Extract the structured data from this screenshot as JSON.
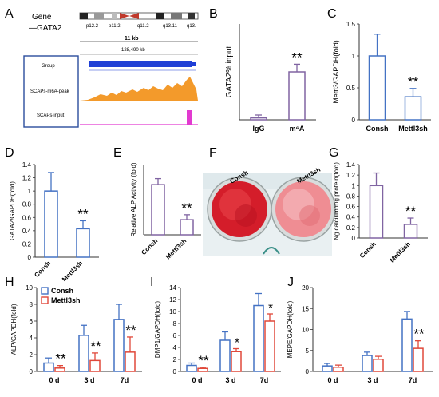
{
  "colors": {
    "blue": "#4472c4",
    "purple": "#8064a2",
    "red": "#e0483a",
    "track": "#f39a2b",
    "input": "#e23ad0",
    "gene": "#1f3fd6"
  },
  "panel_letters": [
    "A",
    "B",
    "C",
    "D",
    "E",
    "F",
    "G",
    "H",
    "I",
    "J"
  ],
  "panel_a": {
    "gene_label": "Gene",
    "gene_name": "—GATA2",
    "bands": [
      "p12.2",
      "p11.2",
      "q11.2",
      "q13.11",
      "q13."
    ],
    "scale": "11 kb",
    "coord": "128,490 kb",
    "tracks": [
      "Group",
      "SCAPs-m6A-peak",
      "SCAPs-input"
    ]
  },
  "panel_f": {
    "labels": [
      "Consh",
      "Mettl3sh"
    ]
  },
  "chart_data": [
    {
      "panel": "B",
      "type": "bar",
      "categories": [
        "IgG",
        "m⁶A"
      ],
      "values": [
        2,
        50
      ],
      "errors": [
        3,
        8
      ],
      "ylabel": "GATA2% input",
      "ylim": [
        0,
        100
      ],
      "yticks": [],
      "significance": [
        "",
        "**"
      ],
      "color": "purple"
    },
    {
      "panel": "C",
      "type": "bar",
      "categories": [
        "Consh",
        "Mettl3sh"
      ],
      "values": [
        1.0,
        0.36
      ],
      "errors": [
        0.34,
        0.13
      ],
      "ylabel": "Mettl3/GAPDH(fold)",
      "ylim": [
        0,
        1.5
      ],
      "yticks": [
        "0",
        "0.5",
        "1",
        "1.5"
      ],
      "significance": [
        "",
        "**"
      ],
      "color": "blue"
    },
    {
      "panel": "D",
      "type": "bar",
      "categories": [
        "Consh",
        "Mettl3sh"
      ],
      "values": [
        1.0,
        0.43
      ],
      "errors": [
        0.28,
        0.12
      ],
      "ylabel": "GATA2/GAPDH(fold)",
      "ylim": [
        0,
        1.4
      ],
      "yticks": [
        "0",
        "0.2",
        "0.4",
        "0.6",
        "0.8",
        "1",
        "1.2",
        "1.4"
      ],
      "significance": [
        "",
        "**"
      ],
      "color": "blue"
    },
    {
      "panel": "E",
      "type": "bar",
      "categories": [
        "Consh",
        "Mettl3sh"
      ],
      "values": [
        1.0,
        0.3
      ],
      "errors": [
        0.12,
        0.1
      ],
      "ylabel": "Relative ALP Activity  (fold)",
      "ylim": [
        0,
        1.4
      ],
      "yticks": [],
      "significance": [
        "",
        "**"
      ],
      "color": "purple"
    },
    {
      "panel": "G",
      "type": "bar",
      "categories": [
        "Consh",
        "Mettl3sh"
      ],
      "values": [
        1.0,
        0.26
      ],
      "errors": [
        0.24,
        0.12
      ],
      "ylabel": "Ng calcium/mg protein(fold)",
      "ylim": [
        0,
        1.4
      ],
      "yticks": [
        "0",
        "0.2",
        "0.4",
        "0.6",
        "0.8",
        "1",
        "1.2",
        "1.4"
      ],
      "significance": [
        "",
        "**"
      ],
      "color": "purple"
    },
    {
      "panel": "H",
      "type": "bar",
      "categories": [
        "0 d",
        "3 d",
        "7d"
      ],
      "ylabel": "ALP/GAPDH(fold)",
      "ylim": [
        0,
        10
      ],
      "yticks": [
        "0",
        "2",
        "4",
        "6",
        "8",
        "10"
      ],
      "legend": "top-left",
      "series": [
        {
          "name": "Consh",
          "values": [
            1.0,
            4.3,
            6.2
          ],
          "errors": [
            0.6,
            1.2,
            1.8
          ],
          "color": "blue"
        },
        {
          "name": "Mettl3sh",
          "values": [
            0.4,
            1.3,
            2.3
          ],
          "errors": [
            0.3,
            0.9,
            1.8
          ],
          "color": "red"
        }
      ],
      "significance": [
        "**",
        "**",
        "**"
      ]
    },
    {
      "panel": "I",
      "type": "bar",
      "categories": [
        "0 d",
        "3 d",
        "7d"
      ],
      "ylabel": "DMP1/GAPDH(fold)",
      "ylim": [
        0,
        14
      ],
      "yticks": [
        "0",
        "2",
        "4",
        "6",
        "8",
        "10",
        "12",
        "14"
      ],
      "series": [
        {
          "values": [
            1.0,
            5.2,
            11.0
          ],
          "errors": [
            0.4,
            1.4,
            2.0
          ],
          "color": "blue"
        },
        {
          "values": [
            0.5,
            3.3,
            8.4
          ],
          "errors": [
            0.2,
            0.5,
            1.2
          ],
          "color": "red"
        }
      ],
      "significance": [
        "**",
        "*",
        "*"
      ]
    },
    {
      "panel": "J",
      "type": "bar",
      "categories": [
        "0 d",
        "3 d",
        "7d"
      ],
      "ylabel": "MEPE/GAPDH(fold)",
      "ylim": [
        0,
        20
      ],
      "yticks": [
        "0",
        "5",
        "10",
        "15",
        "20"
      ],
      "series": [
        {
          "values": [
            1.3,
            3.8,
            12.5
          ],
          "errors": [
            0.6,
            0.8,
            1.8
          ],
          "color": "blue"
        },
        {
          "values": [
            1.0,
            2.9,
            5.5
          ],
          "errors": [
            0.5,
            0.7,
            1.8
          ],
          "color": "red"
        }
      ],
      "significance": [
        "",
        "",
        "**"
      ]
    }
  ]
}
